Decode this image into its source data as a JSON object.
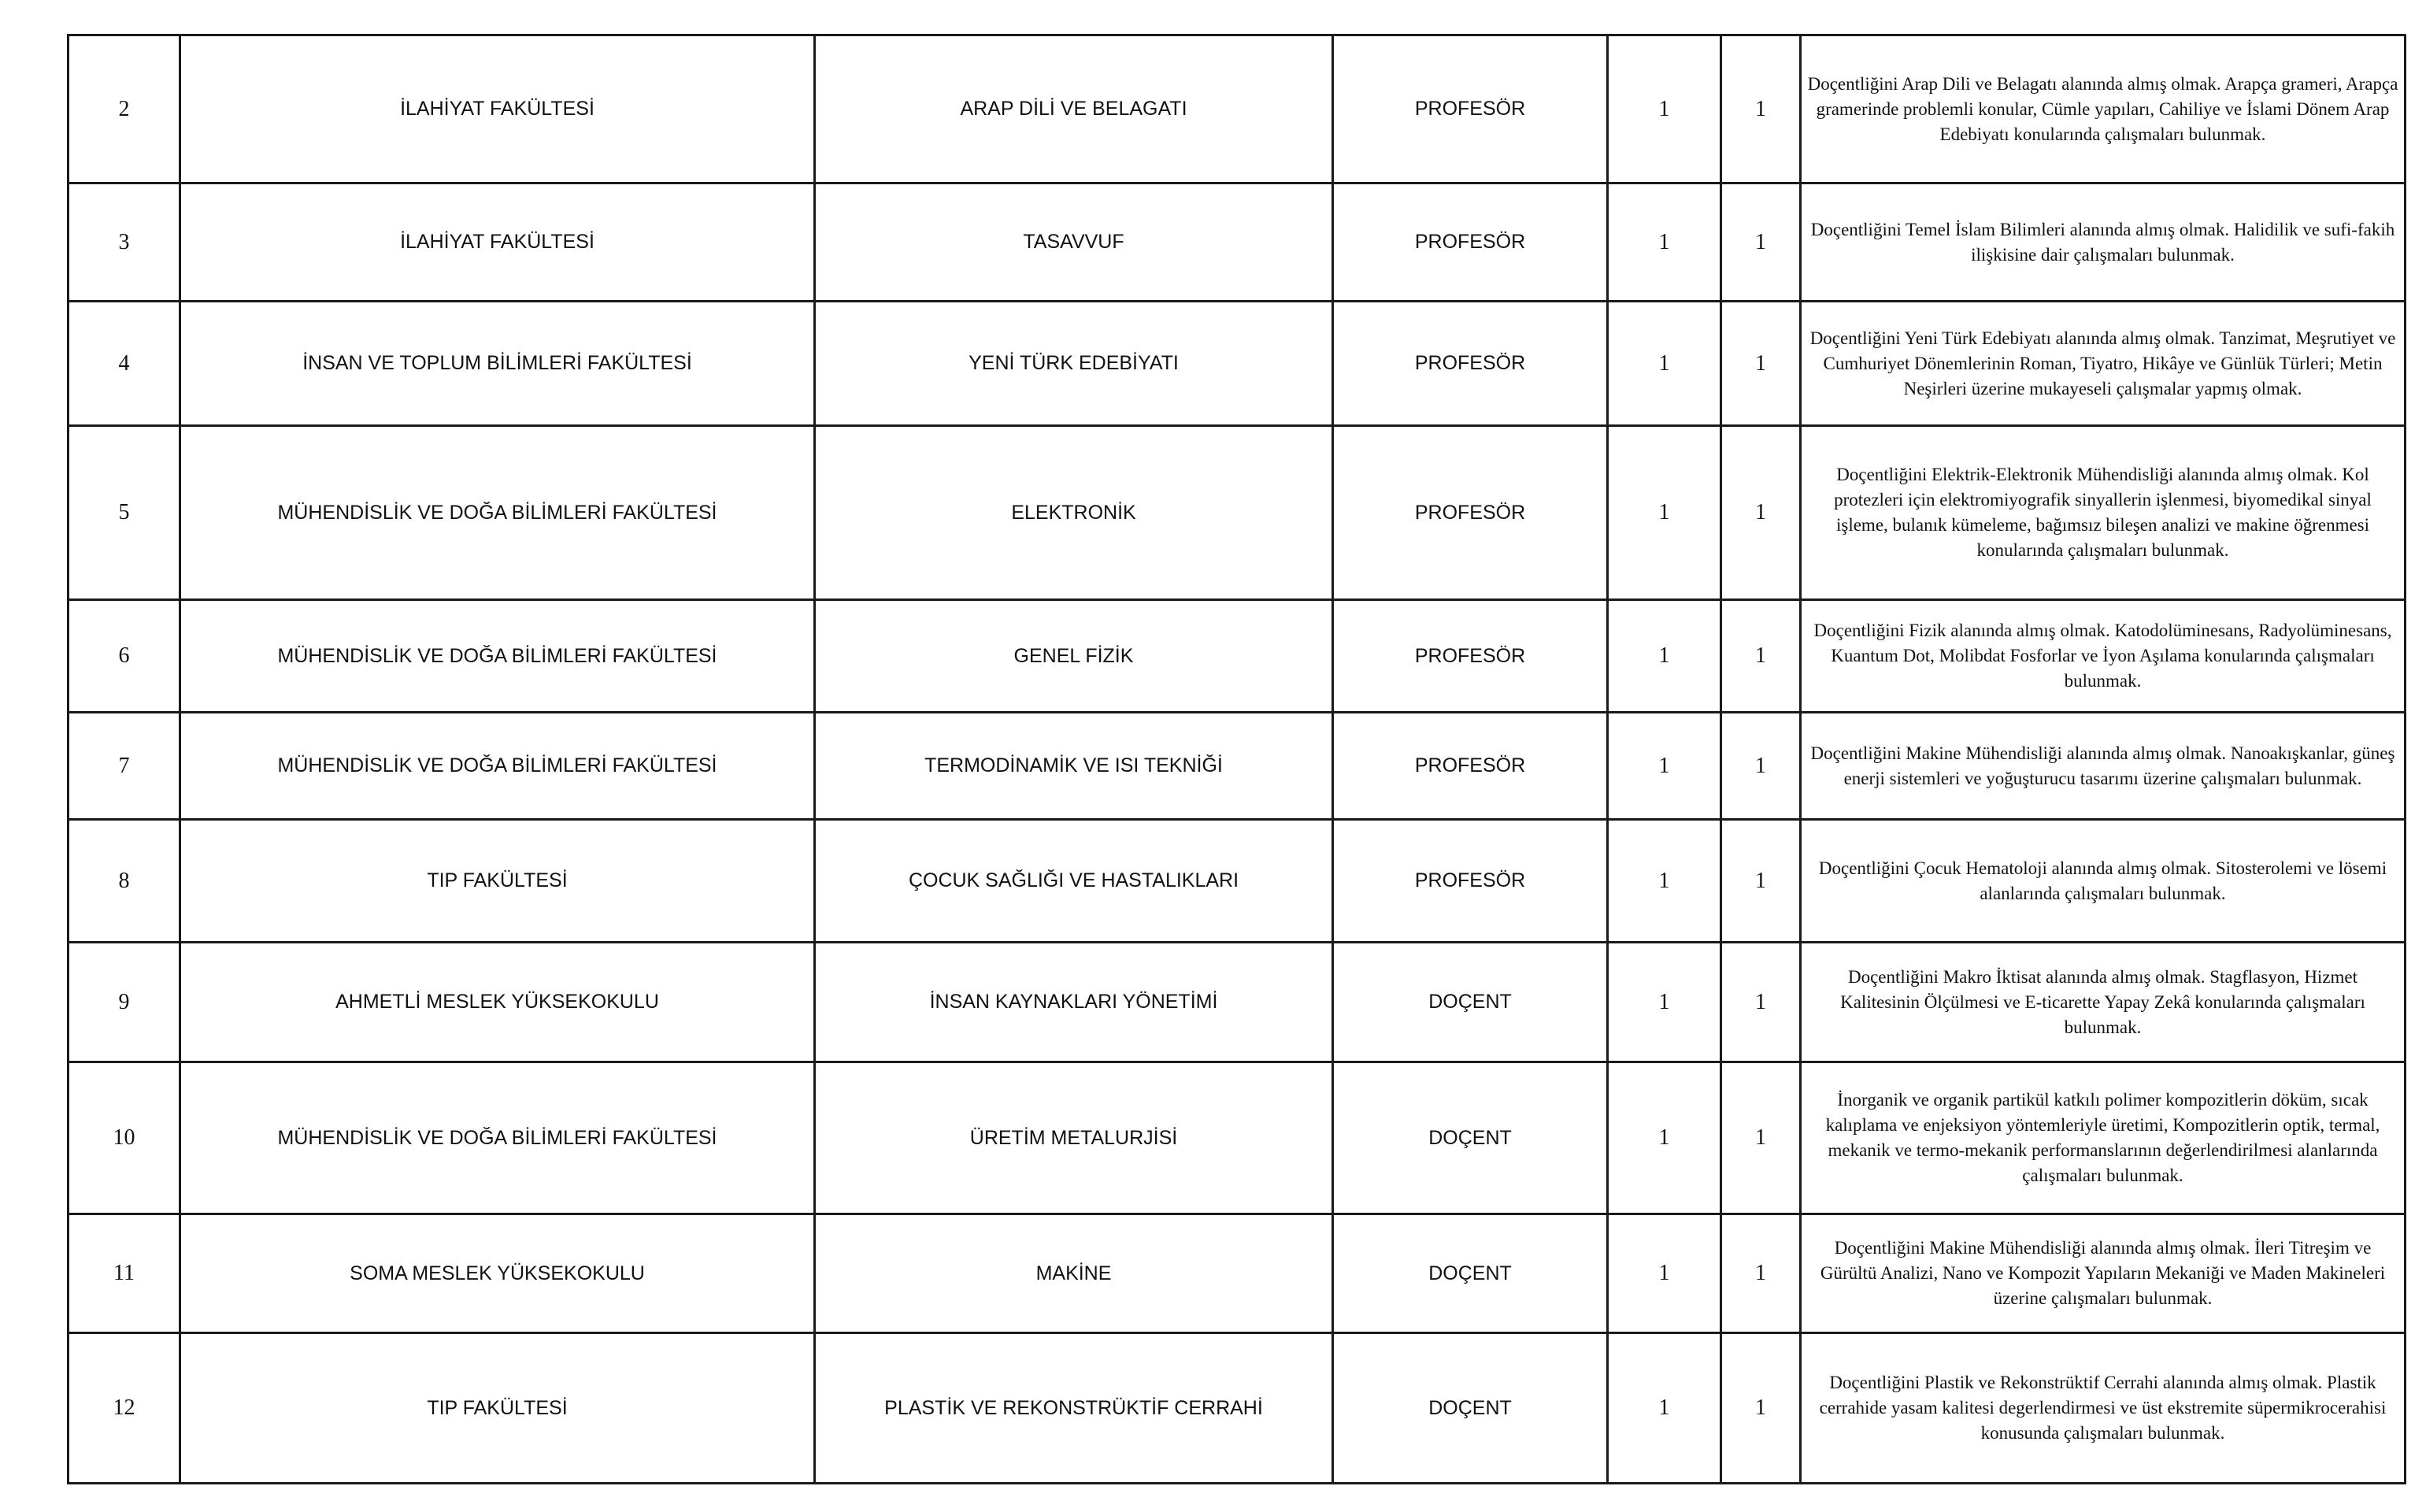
{
  "rows": [
    {
      "no": "2",
      "faculty": "İLAHİYAT FAKÜLTESİ",
      "department": "ARAP DİLİ VE BELAGATI",
      "title": "PROFESÖR",
      "count1": "1",
      "count2": "1",
      "requirement": "Doçentliğini Arap Dili ve Belagatı  alanında almış olmak. Arapça grameri, Arapça gramerinde problemli konular, Cümle yapıları, Cahiliye ve İslami Dönem Arap Edebiyatı konularında çalışmaları bulunmak."
    },
    {
      "no": "3",
      "faculty": "İLAHİYAT FAKÜLTESİ",
      "department": "TASAVVUF",
      "title": "PROFESÖR",
      "count1": "1",
      "count2": "1",
      "requirement": "Doçentliğini Temel İslam Bilimleri alanında almış olmak. Halidilik ve sufi-fakih ilişkisine dair çalışmaları bulunmak."
    },
    {
      "no": "4",
      "faculty": "İNSAN VE TOPLUM BİLİMLERİ FAKÜLTESİ",
      "department": "YENİ TÜRK EDEBİYATI",
      "title": "PROFESÖR",
      "count1": "1",
      "count2": "1",
      "requirement": "Doçentliğini Yeni Türk Edebiyatı alanında almış olmak. Tanzimat, Meşrutiyet ve Cumhuriyet Dönemlerinin Roman, Tiyatro, Hikâye  ve Günlük Türleri; Metin Neşirleri üzerine mukayeseli çalışmalar yapmış olmak."
    },
    {
      "no": "5",
      "faculty": "MÜHENDİSLİK VE DOĞA BİLİMLERİ FAKÜLTESİ",
      "department": "ELEKTRONİK",
      "title": "PROFESÖR",
      "count1": "1",
      "count2": "1",
      "requirement": "Doçentliğini Elektrik-Elektronik Mühendisliği alanında almış olmak. Kol protezleri için elektromiyografik sinyallerin işlenmesi, biyomedikal sinyal işleme, bulanık kümeleme, bağımsız bileşen analizi ve makine öğrenmesi konularında çalışmaları bulunmak."
    },
    {
      "no": "6",
      "faculty": "MÜHENDİSLİK VE DOĞA BİLİMLERİ FAKÜLTESİ",
      "department": "GENEL FİZİK",
      "title": "PROFESÖR",
      "count1": "1",
      "count2": "1",
      "requirement": "Doçentliğini Fizik alanında almış olmak. Katodolüminesans, Radyolüminesans, Kuantum Dot, Molibdat Fosforlar ve İyon Aşılama konularında çalışmaları bulunmak."
    },
    {
      "no": "7",
      "faculty": "MÜHENDİSLİK VE DOĞA BİLİMLERİ FAKÜLTESİ",
      "department": "TERMODİNAMİK VE ISI TEKNİĞİ",
      "title": "PROFESÖR",
      "count1": "1",
      "count2": "1",
      "requirement": "Doçentliğini Makine Mühendisliği alanında almış olmak. Nanoakışkanlar, güneş enerji sistemleri ve yoğuşturucu tasarımı üzerine çalışmaları bulunmak."
    },
    {
      "no": "8",
      "faculty": "TIP FAKÜLTESİ",
      "department": "ÇOCUK SAĞLIĞI VE HASTALIKLARI",
      "title": "PROFESÖR",
      "count1": "1",
      "count2": "1",
      "requirement": "Doçentliğini Çocuk Hematoloji alanında almış olmak. Sitosterolemi ve lösemi alanlarında çalışmaları bulunmak."
    },
    {
      "no": "9",
      "faculty": "AHMETLİ MESLEK YÜKSEKOKULU",
      "department": "İNSAN KAYNAKLARI YÖNETİMİ",
      "title": "DOÇENT",
      "count1": "1",
      "count2": "1",
      "requirement": "Doçentliğini Makro İktisat alanında almış olmak. Stagflasyon, Hizmet Kalitesinin Ölçülmesi ve E-ticarette Yapay Zekâ konularında çalışmaları bulunmak."
    },
    {
      "no": "10",
      "faculty": "MÜHENDİSLİK VE DOĞA BİLİMLERİ FAKÜLTESİ",
      "department": "ÜRETİM METALURJİSİ",
      "title": "DOÇENT",
      "count1": "1",
      "count2": "1",
      "requirement": "İnorganik ve organik partikül katkılı polimer kompozitlerin döküm, sıcak kalıplama ve enjeksiyon yöntemleriyle üretimi, Kompozitlerin optik, termal, mekanik ve termo-mekanik performanslarının değerlendirilmesi alanlarında çalışmaları bulunmak."
    },
    {
      "no": "11",
      "faculty": "SOMA MESLEK YÜKSEKOKULU",
      "department": "MAKİNE",
      "title": "DOÇENT",
      "count1": "1",
      "count2": "1",
      "requirement": "Doçentliğini Makine Mühendisliği alanında almış olmak. İleri Titreşim ve Gürültü Analizi, Nano ve Kompozit Yapıların Mekaniği ve Maden Makineleri üzerine çalışmaları bulunmak."
    },
    {
      "no": "12",
      "faculty": "TIP FAKÜLTESİ",
      "department": "PLASTİK VE REKONSTRÜKTİF CERRAHİ",
      "title": "DOÇENT",
      "count1": "1",
      "count2": "1",
      "requirement": "Doçentliğini Plastik ve Rekonstrüktif Cerrahi alanında almış olmak. Plastik cerrahide yasam kalitesi degerlendirmesi ve üst ekstremite süpermikrocerahisi  konusunda çalışmaları bulunmak."
    }
  ]
}
